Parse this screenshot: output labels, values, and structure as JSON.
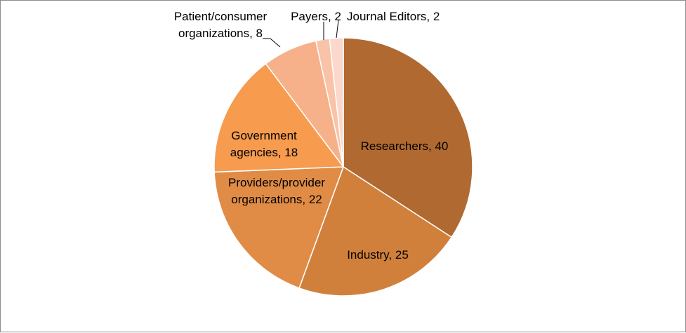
{
  "chart_data": {
    "type": "pie",
    "categories": [
      "Researchers",
      "Industry",
      "Providers/provider organizations",
      "Government agencies",
      "Patient/consumer organizations",
      "Payers",
      "Journal Editors"
    ],
    "values": [
      40,
      25,
      22,
      18,
      8,
      2,
      2
    ],
    "colors": [
      "#b06930",
      "#d1803c",
      "#e08c46",
      "#f79b4e",
      "#f7b18a",
      "#f8c3a7",
      "#fbd8cb"
    ],
    "labels": [
      [
        "Researchers, 40"
      ],
      [
        "Industry, 25"
      ],
      [
        "Providers/provider",
        "organizations, 22"
      ],
      [
        "Government",
        "agencies, 18"
      ],
      [
        "Patient/consumer",
        "organizations, 8"
      ],
      [
        "Payers, 2"
      ],
      [
        "Journal Editors, 2"
      ]
    ],
    "legend": "none",
    "start": "12 o'clock",
    "direction": "clockwise"
  }
}
